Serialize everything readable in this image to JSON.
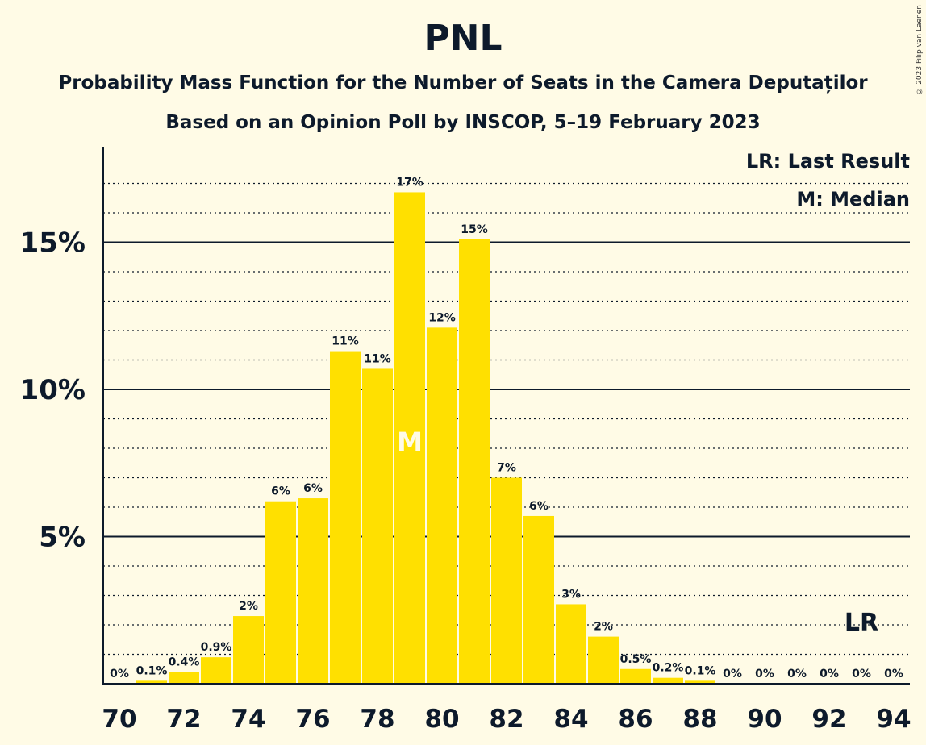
{
  "title": "PNL",
  "subtitle1": "Probability Mass Function for the Number of Seats in the Camera Deputaților",
  "subtitle2": "Based on an Opinion Poll by INSCOP, 5–19 February 2023",
  "copyright": "© 2023 Filip van Laenen",
  "legend": {
    "lr": "LR: Last Result",
    "median": "M: Median"
  },
  "colors": {
    "bar": "#FFE000",
    "background": "#FFFBE6",
    "text": "#0D1A2B"
  },
  "chart_data": {
    "type": "bar",
    "x": [
      70,
      71,
      72,
      73,
      74,
      75,
      76,
      77,
      78,
      79,
      80,
      81,
      82,
      83,
      84,
      85,
      86,
      87,
      88,
      89,
      90,
      91,
      92,
      93,
      94
    ],
    "values": [
      0,
      0.1,
      0.4,
      0.9,
      2.3,
      6.2,
      6.3,
      11.3,
      10.7,
      16.7,
      12.1,
      15.1,
      7.0,
      5.7,
      2.7,
      1.6,
      0.5,
      0.2,
      0.1,
      0,
      0,
      0,
      0,
      0,
      0
    ],
    "labels": [
      "0%",
      "0.1%",
      "0.4%",
      "0.9%",
      "2%",
      "6%",
      "6%",
      "11%",
      "11%",
      "17%",
      "12%",
      "15%",
      "7%",
      "6%",
      "3%",
      "2%",
      "0.5%",
      "0.2%",
      "0.1%",
      "0%",
      "0%",
      "0%",
      "0%",
      "0%",
      "0%"
    ],
    "x_ticks": [
      "70",
      "72",
      "74",
      "76",
      "78",
      "80",
      "82",
      "84",
      "86",
      "88",
      "90",
      "92",
      "94"
    ],
    "y_ticks": [
      "5%",
      "10%",
      "15%"
    ],
    "ylim": [
      0,
      18
    ],
    "median": {
      "seats": 79,
      "label": "M"
    },
    "last_result": {
      "seats": 93,
      "label": "LR"
    },
    "grid": true
  }
}
